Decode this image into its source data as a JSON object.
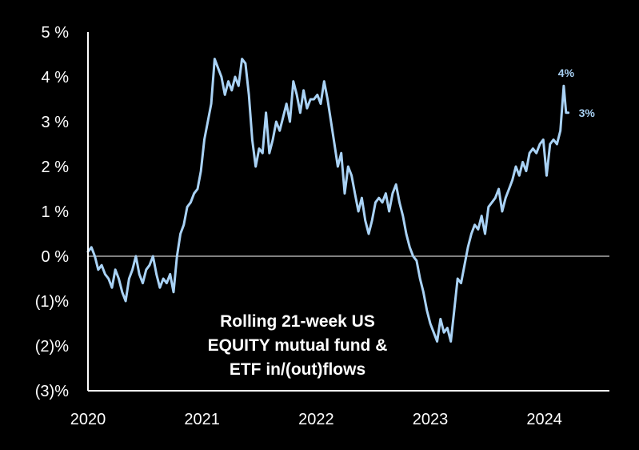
{
  "chart_data": {
    "type": "line",
    "caption_lines": [
      "Rolling 21-week US",
      "EQUITY mutual fund &",
      "ETF in/(out)flows"
    ],
    "x_ticks": [
      "2020",
      "2021",
      "2022",
      "2023",
      "2024"
    ],
    "y_ticks": [
      {
        "value": 5,
        "label": "5 %"
      },
      {
        "value": 4,
        "label": "4 %"
      },
      {
        "value": 3,
        "label": "3 %"
      },
      {
        "value": 2,
        "label": "2 %"
      },
      {
        "value": 1,
        "label": "1 %"
      },
      {
        "value": 0,
        "label": "0 %"
      },
      {
        "value": -1,
        "label": "(1)%"
      },
      {
        "value": -2,
        "label": "(2)%"
      },
      {
        "value": -3,
        "label": "(3)%"
      }
    ],
    "xlim": [
      2020.0,
      2024.57
    ],
    "ylim": [
      -3,
      5
    ],
    "zero_line": true,
    "grid": false,
    "annotations": [
      {
        "text": "4%",
        "x": 2024.19,
        "y": 3.8
      },
      {
        "text": "3%",
        "x": 2024.21,
        "y": 3.2
      }
    ],
    "colors": {
      "background": "#000000",
      "line": "#a9d2f5",
      "axis": "#ffffff",
      "text": "#ffffff",
      "annotation": "#a9d2f5"
    },
    "series": [
      {
        "x": [
          2020.0,
          2020.03,
          2020.06,
          2020.09,
          2020.12,
          2020.15,
          2020.18,
          2020.21,
          2020.24,
          2020.27,
          2020.3,
          2020.33,
          2020.36,
          2020.39,
          2020.42,
          2020.45,
          2020.48,
          2020.51,
          2020.54,
          2020.57,
          2020.6,
          2020.63,
          2020.66,
          2020.69,
          2020.72,
          2020.75,
          2020.78,
          2020.81,
          2020.84,
          2020.87,
          2020.9,
          2020.93,
          2020.96,
          2020.99,
          2021.02,
          2021.05,
          2021.08,
          2021.11,
          2021.14,
          2021.17,
          2021.2,
          2021.23,
          2021.26,
          2021.29,
          2021.32,
          2021.35,
          2021.38,
          2021.41,
          2021.44,
          2021.47,
          2021.5,
          2021.53,
          2021.56,
          2021.59,
          2021.62,
          2021.65,
          2021.68,
          2021.71,
          2021.74,
          2021.77,
          2021.8,
          2021.83,
          2021.86,
          2021.89,
          2021.92,
          2021.95,
          2021.98,
          2022.01,
          2022.04,
          2022.07,
          2022.1,
          2022.13,
          2022.16,
          2022.19,
          2022.22,
          2022.25,
          2022.28,
          2022.31,
          2022.34,
          2022.37,
          2022.4,
          2022.43,
          2022.46,
          2022.49,
          2022.52,
          2022.55,
          2022.58,
          2022.61,
          2022.64,
          2022.67,
          2022.7,
          2022.73,
          2022.76,
          2022.79,
          2022.82,
          2022.85,
          2022.88,
          2022.91,
          2022.94,
          2022.97,
          2023.0,
          2023.03,
          2023.06,
          2023.09,
          2023.12,
          2023.15,
          2023.18,
          2023.21,
          2023.24,
          2023.27,
          2023.3,
          2023.33,
          2023.36,
          2023.39,
          2023.42,
          2023.45,
          2023.48,
          2023.51,
          2023.54,
          2023.57,
          2023.6,
          2023.63,
          2023.66,
          2023.69,
          2023.72,
          2023.75,
          2023.78,
          2023.81,
          2023.84,
          2023.87,
          2023.9,
          2023.93,
          2023.96,
          2023.99,
          2024.02,
          2024.05,
          2024.08,
          2024.11,
          2024.14,
          2024.17,
          2024.19,
          2024.21
        ],
        "y": [
          0.1,
          0.2,
          0.0,
          -0.3,
          -0.2,
          -0.4,
          -0.5,
          -0.7,
          -0.3,
          -0.5,
          -0.8,
          -1.0,
          -0.5,
          -0.3,
          0.0,
          -0.4,
          -0.6,
          -0.3,
          -0.2,
          0.0,
          -0.4,
          -0.7,
          -0.5,
          -0.6,
          -0.4,
          -0.8,
          0.0,
          0.5,
          0.7,
          1.1,
          1.2,
          1.4,
          1.5,
          1.9,
          2.6,
          3.0,
          3.4,
          4.4,
          4.2,
          4.0,
          3.6,
          3.9,
          3.7,
          4.0,
          3.8,
          4.4,
          4.3,
          3.6,
          2.6,
          2.0,
          2.4,
          2.3,
          3.2,
          2.3,
          2.6,
          3.0,
          2.8,
          3.1,
          3.4,
          3.0,
          3.9,
          3.6,
          3.2,
          3.7,
          3.3,
          3.5,
          3.5,
          3.6,
          3.4,
          3.9,
          3.5,
          3.0,
          2.5,
          2.0,
          2.3,
          1.4,
          2.0,
          1.8,
          1.4,
          1.0,
          1.3,
          0.8,
          0.5,
          0.8,
          1.2,
          1.3,
          1.2,
          1.4,
          1.0,
          1.4,
          1.6,
          1.2,
          0.9,
          0.5,
          0.2,
          0.0,
          -0.1,
          -0.5,
          -0.8,
          -1.2,
          -1.5,
          -1.7,
          -1.9,
          -1.4,
          -1.7,
          -1.6,
          -1.9,
          -1.2,
          -0.5,
          -0.6,
          -0.2,
          0.2,
          0.5,
          0.7,
          0.6,
          0.9,
          0.5,
          1.1,
          1.2,
          1.3,
          1.5,
          1.0,
          1.3,
          1.5,
          1.7,
          2.0,
          1.8,
          2.1,
          1.9,
          2.3,
          2.4,
          2.3,
          2.5,
          2.6,
          1.8,
          2.5,
          2.6,
          2.5,
          2.8,
          3.8,
          3.2,
          3.2
        ]
      }
    ]
  }
}
